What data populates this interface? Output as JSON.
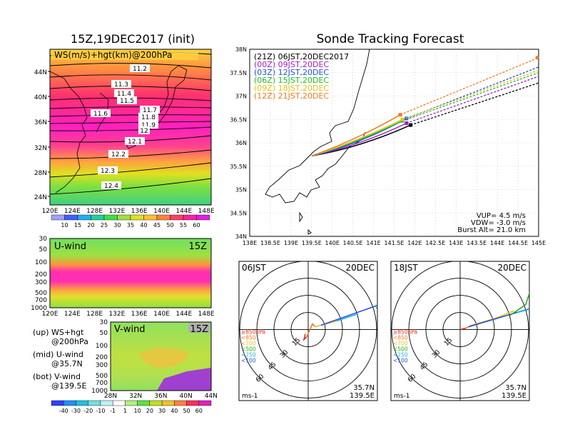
{
  "left": {
    "title": "15Z,19DEC2017 (init)",
    "map_label": "WS(m/s)+hgt(km)@200hPa",
    "lat_labels": [
      "44N",
      "40N",
      "36N",
      "32N",
      "28N",
      "24N"
    ],
    "lon_labels": [
      "120E",
      "124E",
      "128E",
      "132E",
      "136E",
      "140E",
      "144E",
      "148E"
    ],
    "hgt_labels": [
      "11.2",
      "11.3",
      "11.4",
      "11.5",
      "11.6",
      "11.7",
      "11.8",
      "11.9",
      "12",
      "12.1",
      "12.2",
      "12.3",
      "12.4"
    ],
    "ws_colorbar": [
      "10",
      "15",
      "20",
      "25",
      "30",
      "35",
      "40",
      "45",
      "50",
      "55",
      "60"
    ],
    "uwind_label": "U-wind",
    "uwind_time": "15Z",
    "uwind_levels": [
      "30",
      "50",
      "100",
      "200",
      "300",
      "500",
      "700",
      "1000"
    ],
    "uwind_lons": [
      "120E",
      "124E",
      "128E",
      "132E",
      "136E",
      "140E",
      "144E",
      "148E"
    ],
    "vwind_label": "V-wind",
    "vwind_time": "15Z",
    "vwind_levels": [
      "30",
      "50",
      "100",
      "200",
      "300",
      "500",
      "700",
      "1000"
    ],
    "vwind_lats": [
      "28N",
      "32N",
      "36N",
      "40N",
      "44N"
    ],
    "legend_up": "(up) WS+hgt",
    "legend_up2": "@200hPa",
    "legend_mid": "(mid) U-wind",
    "legend_mid2": "@35.7N",
    "legend_bot": "(bot) V-wind",
    "legend_bot2": "@139.5E",
    "wind_colorbar": [
      "-40",
      "-30",
      "-20",
      "-10",
      "-1",
      "1",
      "10",
      "20",
      "30",
      "40",
      "50",
      "60"
    ]
  },
  "right": {
    "title": "Sonde Tracking Forecast",
    "lat_labels": [
      "38N",
      "37.5N",
      "37N",
      "36.5N",
      "36N",
      "35.5N",
      "35N",
      "34.5N",
      "34N"
    ],
    "lon_labels": [
      "138E",
      "138.5E",
      "139E",
      "139.5E",
      "140E",
      "140.5E",
      "141E",
      "141.5E",
      "142E",
      "142.5E",
      "143E",
      "143.5E",
      "144E",
      "144.5E",
      "145E"
    ],
    "params": [
      "VUP= 4.5 m/s",
      "VDW= -3.0 m/s",
      "Burst Alt= 21.0 km"
    ],
    "polar_left": {
      "time": "06JST",
      "date": "20DEC",
      "lat": "35.7N",
      "lon": "139.5E",
      "unit": "ms-1",
      "rings": [
        "15",
        "30",
        "45",
        "60"
      ]
    },
    "polar_right": {
      "time": "18JST",
      "date": "20DEC",
      "lat": "35.7N",
      "lon": "139.5E",
      "unit": "ms-1",
      "rings": [
        "15",
        "30",
        "45",
        "60"
      ]
    },
    "pressure_legend": [
      {
        "label": "≥850hPa",
        "color": "#e03020"
      },
      {
        "label": "<850",
        "color": "#f07a20"
      },
      {
        "label": "<700",
        "color": "#e8c020"
      },
      {
        "label": "<500",
        "color": "#20b020"
      },
      {
        "label": "<250",
        "color": "#20b0e0"
      },
      {
        "label": "<100",
        "color": "#2050e0"
      }
    ]
  },
  "chart_data": {
    "type": "line",
    "title": "Sonde Tracking Forecast",
    "xlim": [
      138,
      145
    ],
    "ylim": [
      34,
      38
    ],
    "launch": {
      "lon": 139.5,
      "lat": 35.72
    },
    "series": [
      {
        "name": "(21Z) 06JST,20DEC2017",
        "color": "#000000",
        "burst": [
          141.9,
          36.38
        ],
        "end": [
          145.0,
          37.28
        ]
      },
      {
        "name": "(00Z) 09JST,20DEC",
        "color": "#a020c0",
        "burst": [
          141.8,
          36.42
        ],
        "end": [
          145.0,
          37.42
        ]
      },
      {
        "name": "(03Z) 12JST,20DEC",
        "color": "#2050e0",
        "burst": [
          141.8,
          36.52
        ],
        "end": [
          145.0,
          37.62
        ]
      },
      {
        "name": "(06Z) 15JST,20DEC",
        "color": "#20c020",
        "burst": [
          141.7,
          36.47
        ],
        "end": [
          145.0,
          37.5
        ]
      },
      {
        "name": "(09Z) 18JST,20DEC",
        "color": "#e8c020",
        "burst": [
          141.7,
          36.5
        ],
        "end": [
          145.0,
          37.55
        ]
      },
      {
        "name": "(12Z) 21JST,20DEC",
        "color": "#f07a20",
        "burst": [
          141.65,
          36.6
        ],
        "end": [
          145.0,
          37.82
        ]
      }
    ]
  }
}
